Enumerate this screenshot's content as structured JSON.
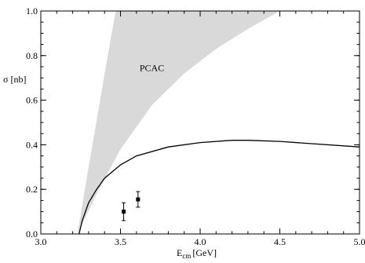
{
  "chart_data": {
    "type": "line",
    "title": "",
    "xlabel": "E",
    "xlabel_subscript": "cm",
    "xlabel_unit": "[GeV]",
    "ylabel": "σ [nb]",
    "xlim": [
      3.0,
      5.0
    ],
    "ylim": [
      0.0,
      1.0
    ],
    "x_ticks": [
      "3.0",
      "3.5",
      "4.0",
      "4.5",
      "5.0"
    ],
    "y_ticks": [
      "0.0",
      "0.2",
      "0.4",
      "0.6",
      "0.8",
      "1.0"
    ],
    "grid": false,
    "annotations": [
      {
        "text": "PCAC",
        "x": 3.62,
        "y": 0.73
      }
    ],
    "band": {
      "label": "PCAC",
      "color": "#d9d9d9",
      "lower": [
        [
          3.23,
          0.0
        ],
        [
          3.35,
          0.18
        ],
        [
          3.5,
          0.38
        ],
        [
          3.7,
          0.58
        ],
        [
          3.9,
          0.72
        ],
        [
          4.1,
          0.83
        ],
        [
          4.3,
          0.92
        ],
        [
          4.5,
          1.0
        ]
      ],
      "upper": [
        [
          3.23,
          0.0
        ],
        [
          3.3,
          0.3
        ],
        [
          3.36,
          0.55
        ],
        [
          3.42,
          0.8
        ],
        [
          3.47,
          1.0
        ]
      ]
    },
    "series": [
      {
        "color": "#000000",
        "x": [
          3.24,
          3.26,
          3.3,
          3.35,
          3.4,
          3.5,
          3.6,
          3.8,
          4.0,
          4.2,
          4.3,
          4.5,
          4.7,
          5.0
        ],
        "y": [
          0.0,
          0.06,
          0.14,
          0.2,
          0.25,
          0.31,
          0.35,
          0.39,
          0.41,
          0.42,
          0.42,
          0.415,
          0.405,
          0.39
        ]
      }
    ],
    "data_points": [
      {
        "x": 3.52,
        "y": 0.1,
        "yerr_low": 0.06,
        "yerr_high": 0.14
      },
      {
        "x": 3.61,
        "y": 0.155,
        "yerr_low": 0.12,
        "yerr_high": 0.19
      }
    ]
  }
}
